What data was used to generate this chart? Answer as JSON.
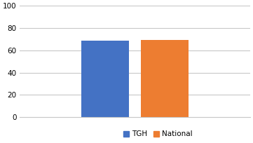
{
  "categories": [
    "TGH",
    "National"
  ],
  "values": [
    68.7,
    69.0
  ],
  "bar_colors": [
    "#4472C4",
    "#ED7D31"
  ],
  "bar_width": 0.28,
  "ylim": [
    0,
    100
  ],
  "yticks": [
    0,
    20,
    40,
    60,
    80,
    100
  ],
  "legend_labels": [
    "TGH",
    "National"
  ],
  "background_color": "#ffffff",
  "grid_color": "#c8c8c8",
  "tick_fontsize": 7.5,
  "legend_fontsize": 7.5,
  "bar_positions": [
    0.5,
    0.85
  ]
}
